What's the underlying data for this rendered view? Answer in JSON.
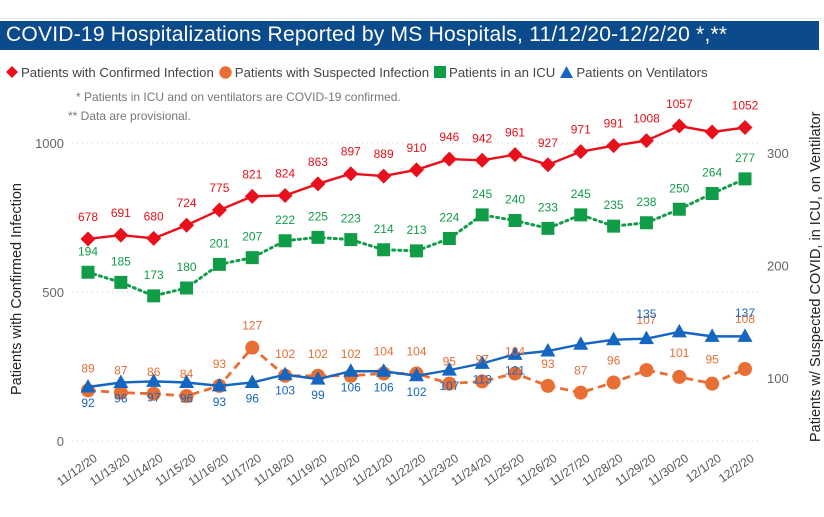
{
  "title": "COVID-19 Hospitalizations Reported by MS Hospitals, 11/12/20-12/2/20 *,**",
  "notes": [
    "* Patients in ICU and on ventilators are COVID-19 confirmed.",
    "** Data are provisional."
  ],
  "colors": {
    "title_bg": "#0b4a8b",
    "confirmed": "#e8101a",
    "suspected": "#e86e33",
    "icu": "#119c48",
    "ventilators": "#1566c0"
  },
  "chart_data": {
    "type": "line",
    "title": "COVID-19 Hospitalizations Reported by MS Hospitals, 11/12/20-12/2/20 *,**",
    "x": [
      "11/12/20",
      "11/13/20",
      "11/14/20",
      "11/15/20",
      "11/16/20",
      "11/17/20",
      "11/18/20",
      "11/19/20",
      "11/20/20",
      "11/21/20",
      "11/22/20",
      "11/23/20",
      "11/24/20",
      "11/25/20",
      "11/26/20",
      "11/27/20",
      "11/28/20",
      "11/29/20",
      "11/30/20",
      "12/1/20",
      "12/2/20"
    ],
    "ylabel_left": "Patients with Confirmed Infection",
    "ylabel_right": "Patients w/ Suspected COVID, in ICU, on Ventilator",
    "ylim_left": [
      0,
      1000
    ],
    "yticks_left": [
      0,
      500,
      1000
    ],
    "yticks_right": [
      100,
      200,
      300
    ],
    "grid": true,
    "legend_position": "top-left",
    "series": [
      {
        "name": "Patients with Confirmed Infection",
        "axis": "left",
        "marker": "diamond",
        "style": "solid",
        "color": "#e8101a",
        "values": [
          678,
          691,
          680,
          724,
          775,
          821,
          824,
          863,
          897,
          889,
          910,
          946,
          942,
          961,
          927,
          971,
          991,
          1008,
          1057,
          1037,
          1052
        ],
        "labels": [
          "678",
          "691",
          "680",
          "724",
          "775",
          "821",
          "824",
          "863",
          "897",
          "889",
          "910",
          "946",
          "942",
          "961",
          "927",
          "971",
          "991",
          "1008",
          "1057",
          "",
          "1052"
        ]
      },
      {
        "name": "Patients with Suspected Infection",
        "axis": "right",
        "marker": "circle",
        "style": "dashed",
        "color": "#e86e33",
        "values": [
          89,
          87,
          86,
          84,
          93,
          127,
          102,
          102,
          102,
          104,
          104,
          95,
          97,
          104,
          93,
          87,
          96,
          107,
          101,
          95,
          108
        ],
        "labels": [
          "89",
          "87",
          "86",
          "84",
          "93",
          "127",
          "102",
          "102",
          "102",
          "104",
          "104",
          "95",
          "97",
          "104",
          "93",
          "87",
          "96",
          "107",
          "101",
          "95",
          "108"
        ]
      },
      {
        "name": "Patients in an ICU",
        "axis": "right",
        "marker": "square",
        "style": "dotted",
        "color": "#119c48",
        "values": [
          194,
          185,
          173,
          180,
          201,
          207,
          222,
          225,
          223,
          214,
          213,
          224,
          245,
          240,
          233,
          245,
          235,
          238,
          250,
          264,
          277
        ],
        "labels": [
          "194",
          "185",
          "173",
          "180",
          "201",
          "207",
          "222",
          "225",
          "223",
          "214",
          "213",
          "224",
          "245",
          "240",
          "233",
          "245",
          "235",
          "238",
          "250",
          "264",
          "277"
        ]
      },
      {
        "name": "Patients on Ventilators",
        "axis": "right",
        "marker": "triangle",
        "style": "solid",
        "color": "#1566c0",
        "values": [
          92,
          96,
          97,
          96,
          93,
          96,
          103,
          99,
          106,
          106,
          102,
          107,
          113,
          121,
          124,
          130,
          134,
          135,
          141,
          137,
          137
        ],
        "labels": [
          "92",
          "96",
          "97",
          "96",
          "93",
          "96",
          "103",
          "99",
          "106",
          "106",
          "102",
          "107",
          "113",
          "121",
          "",
          "",
          "",
          "135",
          "",
          "",
          "137"
        ]
      }
    ]
  }
}
